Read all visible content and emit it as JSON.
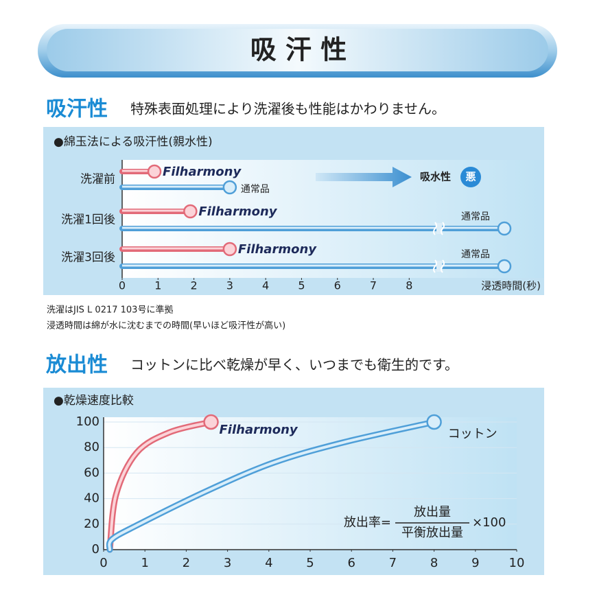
{
  "header": {
    "title": "吸 汗 性"
  },
  "sections": [
    {
      "heading": "吸汗性",
      "text": "特殊表面処理により洗濯後も性能はかわりません。"
    },
    {
      "heading": "放出性",
      "text": "コットンに比べ乾燥が早く、いつまでも衛生的です。"
    }
  ],
  "notes": [
    "洗濯はJIS L 0217 103号に準拠",
    "浸透時間は綿が水に沈むまでの時間(早いほど吸汗性が高い)"
  ],
  "chart_data": [
    {
      "type": "hbar",
      "title": "●綿玉法による吸汗性(親水性)",
      "categories": [
        "洗濯前",
        "洗濯1回後",
        "洗濯3回後"
      ],
      "series": [
        {
          "name": "Filharmony",
          "color": "#e26a78",
          "values": [
            0.9,
            1.9,
            3.0
          ]
        },
        {
          "name": "通常品",
          "color": "#4f9fd8",
          "values": [
            3.0,
            null,
            null
          ]
        }
      ],
      "xlabel": "浸透時間(秒)",
      "xlim": [
        0,
        11.8
      ],
      "xticks": [
        0,
        1,
        2,
        3,
        4,
        5,
        6,
        7,
        8
      ],
      "annotation": "吸水性",
      "badge": "悪"
    },
    {
      "type": "line",
      "title": "●乾燥速度比較",
      "series": [
        {
          "name": "Filharmony",
          "color": "#e26a78",
          "x": [
            0.15,
            0.3,
            0.8,
            1.6,
            2.6
          ],
          "values": [
            0,
            43,
            76,
            92,
            100
          ]
        },
        {
          "name": "コットン",
          "color": "#4f9fd8",
          "x": [
            0.15,
            0.2,
            0.8,
            2.5,
            4.1,
            5.8,
            8
          ],
          "values": [
            0,
            8,
            19,
            46,
            68,
            84,
            100
          ]
        }
      ],
      "xlim": [
        0,
        10
      ],
      "ylim": [
        0,
        100
      ],
      "xticks": [
        0,
        1,
        2,
        3,
        4,
        5,
        6,
        7,
        8,
        9,
        10
      ],
      "yticks": [
        0,
        20,
        40,
        60,
        80,
        100
      ],
      "formula": {
        "lhs": "放出率=",
        "numerator": "放出量",
        "denominator": "平衡放出量",
        "factor": "×100"
      }
    }
  ]
}
